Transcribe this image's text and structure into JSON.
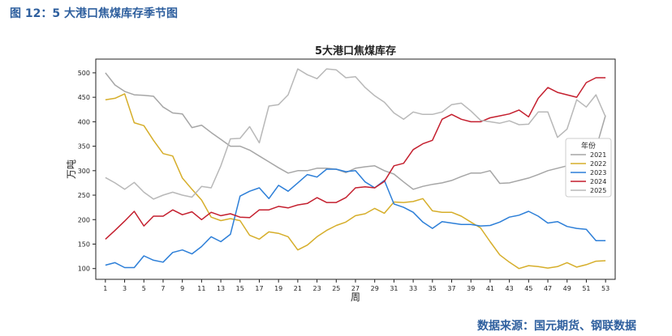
{
  "figure_caption": "图 12：5 大港口焦煤库存季节图",
  "source": "数据来源：国元期货、钢联数据",
  "chart_data": {
    "type": "line",
    "title": "5大港口焦煤库存",
    "xlabel": "周",
    "ylabel": "万吨",
    "xlim": [
      0,
      54
    ],
    "ylim": [
      78,
      528
    ],
    "xticks": [
      1,
      3,
      5,
      7,
      9,
      11,
      13,
      15,
      17,
      19,
      21,
      23,
      25,
      27,
      29,
      31,
      33,
      35,
      37,
      39,
      41,
      43,
      45,
      47,
      49,
      51,
      53
    ],
    "yticks": [
      100,
      150,
      200,
      250,
      300,
      350,
      400,
      450,
      500
    ],
    "grid": false,
    "legend": {
      "title": "年份",
      "placement": "right"
    },
    "series": [
      {
        "name": "2021",
        "color": "#a6a6a6",
        "x": [
          1,
          2,
          3,
          4,
          5,
          6,
          7,
          8,
          9,
          10,
          11,
          12,
          13,
          14,
          15,
          16,
          17,
          18,
          19,
          20,
          21,
          22,
          23,
          24,
          25,
          26,
          27,
          28,
          29,
          30,
          31,
          32,
          33,
          34,
          35,
          36,
          37,
          38,
          39,
          40,
          41,
          42,
          43,
          44,
          45,
          46,
          47,
          48,
          49,
          50,
          51,
          52,
          53
        ],
        "values": [
          500,
          475,
          462,
          455,
          454,
          452,
          430,
          418,
          416,
          388,
          393,
          378,
          364,
          350,
          350,
          342,
          330,
          318,
          306,
          295,
          300,
          300,
          305,
          305,
          303,
          296,
          305,
          308,
          310,
          300,
          293,
          277,
          262,
          268,
          272,
          275,
          280,
          288,
          295,
          295,
          300,
          274,
          275,
          280,
          285,
          292,
          300,
          305,
          310,
          330,
          335,
          345,
          413
        ]
      },
      {
        "name": "2022",
        "color": "#d6ae2a",
        "x": [
          1,
          2,
          3,
          4,
          5,
          6,
          7,
          8,
          9,
          10,
          11,
          12,
          13,
          14,
          15,
          16,
          17,
          18,
          19,
          20,
          21,
          22,
          23,
          24,
          25,
          26,
          27,
          28,
          29,
          30,
          31,
          32,
          33,
          34,
          35,
          36,
          37,
          38,
          39,
          40,
          41,
          42,
          43,
          44,
          45,
          46,
          47,
          48,
          49,
          50,
          51,
          52,
          53
        ],
        "values": [
          445,
          448,
          457,
          398,
          392,
          362,
          335,
          330,
          285,
          262,
          240,
          205,
          198,
          202,
          198,
          168,
          160,
          175,
          172,
          165,
          138,
          148,
          165,
          178,
          188,
          195,
          208,
          212,
          223,
          213,
          236,
          235,
          237,
          243,
          218,
          215,
          215,
          207,
          195,
          183,
          155,
          128,
          113,
          100,
          106,
          104,
          101,
          104,
          112,
          103,
          108,
          115,
          116
        ]
      },
      {
        "name": "2023",
        "color": "#2d7fd8",
        "x": [
          1,
          2,
          3,
          4,
          5,
          6,
          7,
          8,
          9,
          10,
          11,
          12,
          13,
          14,
          15,
          16,
          17,
          18,
          19,
          20,
          21,
          22,
          23,
          24,
          25,
          26,
          27,
          28,
          29,
          30,
          31,
          32,
          33,
          34,
          35,
          36,
          37,
          38,
          39,
          40,
          41,
          42,
          43,
          44,
          45,
          46,
          47,
          48,
          49,
          50,
          51,
          52,
          53
        ],
        "values": [
          107,
          112,
          102,
          102,
          126,
          117,
          113,
          133,
          138,
          130,
          145,
          165,
          155,
          170,
          248,
          258,
          265,
          243,
          270,
          258,
          275,
          292,
          287,
          303,
          303,
          298,
          300,
          277,
          265,
          280,
          232,
          225,
          215,
          195,
          182,
          196,
          193,
          190,
          190,
          187,
          188,
          195,
          205,
          209,
          217,
          207,
          193,
          196,
          186,
          182,
          180,
          157,
          157
        ]
      },
      {
        "name": "2024",
        "color": "#c41f2e",
        "x": [
          1,
          2,
          3,
          4,
          5,
          6,
          7,
          8,
          9,
          10,
          11,
          12,
          13,
          14,
          15,
          16,
          17,
          18,
          19,
          20,
          21,
          22,
          23,
          24,
          25,
          26,
          27,
          28,
          29,
          30,
          31,
          32,
          33,
          34,
          35,
          36,
          37,
          38,
          39,
          40,
          41,
          42,
          43,
          44,
          45,
          46,
          47,
          48,
          49,
          50,
          51,
          52,
          53
        ],
        "values": [
          160,
          178,
          197,
          217,
          187,
          207,
          207,
          220,
          210,
          216,
          200,
          215,
          208,
          212,
          205,
          204,
          220,
          220,
          227,
          224,
          230,
          233,
          245,
          235,
          235,
          245,
          265,
          267,
          265,
          278,
          310,
          315,
          343,
          355,
          362,
          405,
          415,
          405,
          400,
          400,
          408,
          412,
          416,
          424,
          410,
          448,
          470,
          460,
          455,
          450,
          480,
          490,
          490
        ]
      },
      {
        "name": "2025",
        "color": "#b8b8b8",
        "x": [
          1,
          2,
          3,
          4,
          5,
          6,
          7,
          8,
          9,
          10,
          11,
          12,
          13,
          14,
          15,
          16,
          17,
          18,
          19,
          20,
          21,
          22,
          23,
          24,
          25,
          26,
          27,
          28,
          29,
          30,
          31,
          32,
          33,
          34,
          35,
          36,
          37,
          38,
          39,
          40,
          41,
          42,
          43,
          44,
          45,
          46,
          47,
          48,
          49,
          50,
          51,
          52,
          53
        ],
        "values": [
          286,
          275,
          262,
          276,
          256,
          242,
          250,
          256,
          250,
          246,
          268,
          265,
          310,
          365,
          366,
          390,
          357,
          432,
          435,
          455,
          508,
          496,
          488,
          508,
          506,
          490,
          492,
          470,
          453,
          440,
          418,
          405,
          420,
          415,
          415,
          420,
          435,
          438,
          422,
          403,
          400,
          397,
          402,
          394,
          395,
          420,
          420,
          368,
          385,
          445,
          430,
          455,
          410
        ]
      }
    ]
  }
}
